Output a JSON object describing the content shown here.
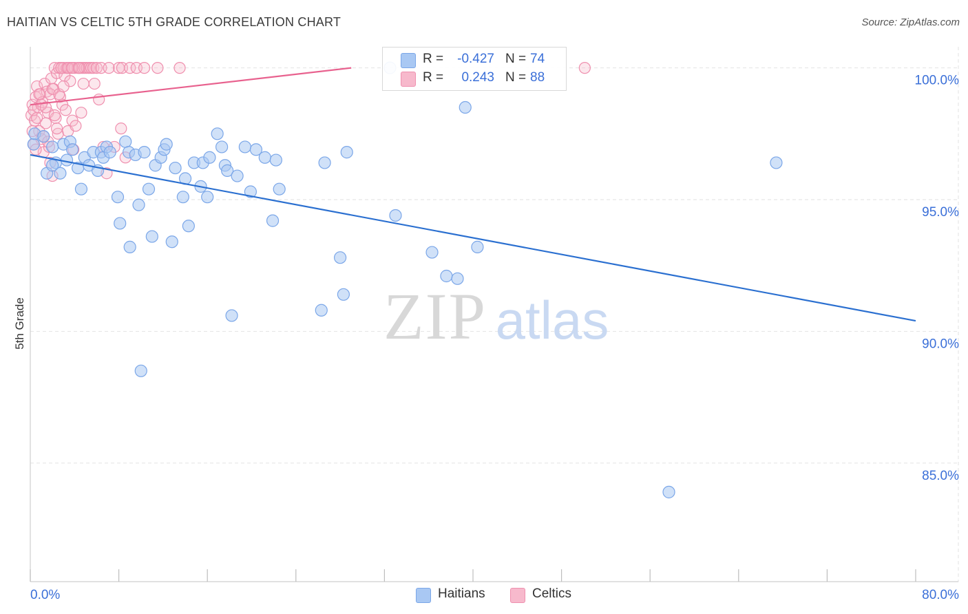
{
  "title": "HAITIAN VS CELTIC 5TH GRADE CORRELATION CHART",
  "source": "Source: ZipAtlas.com",
  "watermark": {
    "zip": "ZIP",
    "atlas": "atlas"
  },
  "colors": {
    "haitians_fill": "#a9c8f3",
    "haitians_stroke": "#7aa6e8",
    "haitians_line": "#2a6fd0",
    "celtics_fill": "#f7b9cc",
    "celtics_stroke": "#ef8fae",
    "celtics_line": "#e8618e",
    "tick_label": "#3a6fd8",
    "grid": "#e2e2e2"
  },
  "legend": {
    "rows": [
      {
        "r_label": "R =",
        "r_value": "-0.427",
        "n_label": "N =",
        "n_value": "74"
      },
      {
        "r_label": "R =",
        "r_value": "0.243",
        "n_label": "N =",
        "n_value": "88"
      }
    ],
    "bottom": [
      "Haitians",
      "Celtics"
    ]
  },
  "chart_data": {
    "type": "scatter",
    "xlabel": "",
    "ylabel": "5th Grade",
    "xlim": [
      0,
      80
    ],
    "ylim": [
      80.5,
      100.8
    ],
    "x_tick_labels": [
      "0.0%",
      "80.0%"
    ],
    "y_ticks": [
      100,
      95,
      90,
      85
    ],
    "y_tick_labels": [
      "100.0%",
      "95.0%",
      "90.0%",
      "85.0%"
    ],
    "grid": true,
    "legend_position": "top-center",
    "series": [
      {
        "name": "Haitians",
        "trend": {
          "x": [
            0,
            80
          ],
          "y": [
            96.7,
            90.4
          ]
        },
        "points": [
          [
            0.3,
            97.1
          ],
          [
            0.4,
            97.5
          ],
          [
            1.2,
            97.4
          ],
          [
            1.5,
            96.0
          ],
          [
            2.0,
            97.0
          ],
          [
            2.3,
            96.4
          ],
          [
            2.7,
            96.0
          ],
          [
            3.0,
            97.1
          ],
          [
            3.3,
            96.5
          ],
          [
            3.6,
            97.2
          ],
          [
            3.8,
            96.9
          ],
          [
            4.3,
            96.2
          ],
          [
            4.6,
            95.4
          ],
          [
            4.9,
            96.6
          ],
          [
            5.3,
            96.3
          ],
          [
            5.7,
            96.8
          ],
          [
            6.1,
            96.1
          ],
          [
            6.4,
            96.8
          ],
          [
            6.6,
            96.6
          ],
          [
            6.9,
            97.0
          ],
          [
            7.2,
            96.8
          ],
          [
            7.9,
            95.1
          ],
          [
            8.1,
            94.1
          ],
          [
            8.6,
            97.2
          ],
          [
            8.9,
            96.8
          ],
          [
            9.0,
            93.2
          ],
          [
            9.5,
            96.7
          ],
          [
            9.8,
            94.8
          ],
          [
            10.0,
            88.5
          ],
          [
            10.3,
            96.8
          ],
          [
            10.7,
            95.4
          ],
          [
            11.0,
            93.6
          ],
          [
            11.3,
            96.3
          ],
          [
            11.8,
            96.6
          ],
          [
            12.1,
            96.9
          ],
          [
            12.3,
            97.1
          ],
          [
            12.8,
            93.4
          ],
          [
            13.1,
            96.2
          ],
          [
            13.8,
            95.1
          ],
          [
            14.0,
            95.8
          ],
          [
            14.3,
            94.0
          ],
          [
            14.8,
            96.4
          ],
          [
            15.4,
            95.5
          ],
          [
            15.6,
            96.4
          ],
          [
            16.0,
            95.1
          ],
          [
            16.2,
            96.6
          ],
          [
            16.9,
            97.5
          ],
          [
            17.3,
            97.0
          ],
          [
            17.6,
            96.3
          ],
          [
            17.8,
            96.1
          ],
          [
            18.2,
            90.6
          ],
          [
            18.7,
            95.9
          ],
          [
            19.4,
            97.0
          ],
          [
            19.9,
            95.3
          ],
          [
            20.4,
            96.9
          ],
          [
            21.2,
            96.6
          ],
          [
            21.9,
            94.2
          ],
          [
            22.2,
            96.5
          ],
          [
            22.5,
            95.4
          ],
          [
            26.3,
            90.8
          ],
          [
            26.6,
            96.4
          ],
          [
            28.0,
            92.8
          ],
          [
            28.3,
            91.4
          ],
          [
            28.6,
            96.8
          ],
          [
            32.5,
            100.0
          ],
          [
            33.0,
            94.4
          ],
          [
            36.3,
            93.0
          ],
          [
            37.6,
            92.1
          ],
          [
            38.6,
            92.0
          ],
          [
            39.3,
            98.5
          ],
          [
            40.4,
            93.2
          ],
          [
            57.7,
            83.9
          ],
          [
            67.4,
            96.4
          ],
          [
            2.0,
            96.3
          ]
        ]
      },
      {
        "name": "Celtics",
        "trend": {
          "x": [
            0,
            29
          ],
          "y": [
            98.6,
            100.0
          ]
        },
        "points": [
          [
            0.1,
            98.2
          ],
          [
            0.2,
            98.6
          ],
          [
            0.3,
            97.1
          ],
          [
            0.4,
            98.0
          ],
          [
            0.5,
            98.9
          ],
          [
            0.6,
            99.3
          ],
          [
            0.7,
            98.5
          ],
          [
            0.8,
            97.6
          ],
          [
            0.9,
            99.0
          ],
          [
            1.0,
            97.3
          ],
          [
            1.1,
            98.7
          ],
          [
            1.2,
            96.8
          ],
          [
            1.3,
            99.4
          ],
          [
            1.4,
            97.9
          ],
          [
            1.5,
            99.1
          ],
          [
            1.6,
            98.3
          ],
          [
            1.7,
            97.0
          ],
          [
            1.8,
            96.4
          ],
          [
            1.9,
            99.6
          ],
          [
            2.0,
            95.9
          ],
          [
            2.1,
            99.2
          ],
          [
            2.2,
            100.0
          ],
          [
            2.3,
            98.1
          ],
          [
            2.4,
            99.8
          ],
          [
            2.5,
            97.5
          ],
          [
            2.6,
            100.0
          ],
          [
            2.7,
            98.9
          ],
          [
            2.8,
            100.0
          ],
          [
            2.9,
            98.6
          ],
          [
            3.0,
            100.0
          ],
          [
            3.1,
            99.7
          ],
          [
            3.2,
            98.4
          ],
          [
            3.3,
            100.0
          ],
          [
            3.4,
            97.6
          ],
          [
            3.5,
            100.0
          ],
          [
            3.6,
            99.5
          ],
          [
            3.7,
            100.0
          ],
          [
            3.8,
            98.0
          ],
          [
            3.9,
            96.9
          ],
          [
            4.0,
            100.0
          ],
          [
            4.1,
            97.8
          ],
          [
            4.3,
            100.0
          ],
          [
            4.5,
            100.0
          ],
          [
            4.6,
            98.3
          ],
          [
            4.7,
            100.0
          ],
          [
            4.8,
            99.4
          ],
          [
            4.9,
            100.0
          ],
          [
            5.1,
            100.0
          ],
          [
            5.3,
            100.0
          ],
          [
            5.5,
            100.0
          ],
          [
            5.7,
            100.0
          ],
          [
            5.8,
            99.4
          ],
          [
            6.0,
            100.0
          ],
          [
            6.2,
            98.8
          ],
          [
            6.4,
            100.0
          ],
          [
            6.6,
            97.0
          ],
          [
            6.9,
            96.0
          ],
          [
            7.1,
            100.0
          ],
          [
            7.6,
            97.0
          ],
          [
            8.0,
            100.0
          ],
          [
            8.2,
            97.7
          ],
          [
            8.3,
            100.0
          ],
          [
            8.6,
            96.6
          ],
          [
            9.0,
            100.0
          ],
          [
            9.6,
            100.0
          ],
          [
            10.3,
            100.0
          ],
          [
            11.5,
            100.0
          ],
          [
            13.5,
            100.0
          ],
          [
            0.2,
            97.6
          ],
          [
            0.3,
            98.4
          ],
          [
            0.5,
            96.9
          ],
          [
            0.6,
            98.1
          ],
          [
            0.8,
            99.0
          ],
          [
            1.0,
            98.6
          ],
          [
            1.2,
            97.4
          ],
          [
            1.4,
            98.5
          ],
          [
            1.6,
            97.2
          ],
          [
            1.8,
            99.0
          ],
          [
            2.0,
            99.2
          ],
          [
            2.2,
            98.2
          ],
          [
            2.4,
            97.7
          ],
          [
            2.6,
            99.0
          ],
          [
            2.8,
            100.0
          ],
          [
            3.0,
            99.3
          ],
          [
            3.4,
            100.0
          ],
          [
            3.8,
            100.0
          ],
          [
            4.4,
            100.0
          ],
          [
            50.1,
            100.0
          ]
        ]
      }
    ]
  }
}
